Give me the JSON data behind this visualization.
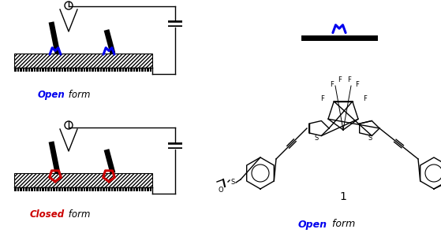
{
  "bg_color": "#ffffff",
  "open_color": "#0000ee",
  "closed_color": "#cc0000",
  "black": "#000000",
  "open_label_blue": "Open",
  "open_label_black": " form",
  "closed_label_red": "Closed",
  "closed_label_black": " form",
  "panel_right_label": "1",
  "panel_right_open_blue": "Open",
  "panel_right_open_black": " form",
  "figsize": [
    5.59,
    3.1
  ],
  "dpi": 100
}
